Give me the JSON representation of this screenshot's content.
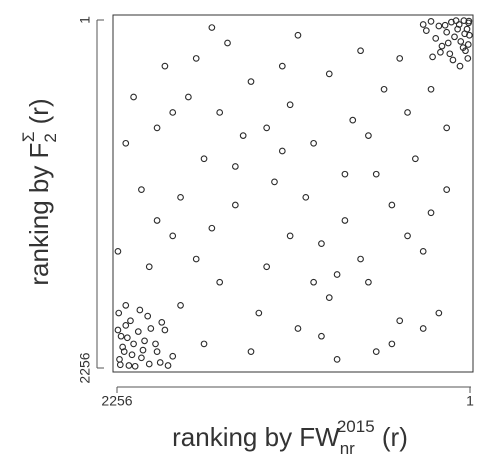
{
  "chart_data": {
    "type": "scatter",
    "x_label": {
      "text": "ranking by FW",
      "sub": "nr",
      "sup": "2015",
      "suffix": " (r)"
    },
    "y_label": {
      "text": "ranking by F",
      "sub": "2",
      "sup": "Σ",
      "suffix": " (r)"
    },
    "xlim": [
      2256,
      1
    ],
    "ylim": [
      2256,
      1
    ],
    "xticks": [
      2256,
      1
    ],
    "yticks": [
      2256,
      1
    ],
    "color": "#2b2b2b",
    "x": [
      2240,
      2210,
      2180,
      2150,
      2230,
      2100,
      2050,
      2200,
      2120,
      2000,
      2245,
      2170,
      2080,
      1980,
      2220,
      1950,
      2140,
      2060,
      2190,
      2010,
      2235,
      1900,
      2110,
      2160,
      2040,
      2250,
      1930,
      2090,
      1970,
      2200,
      10,
      40,
      80,
      5,
      120,
      60,
      150,
      30,
      200,
      100,
      15,
      250,
      70,
      180,
      130,
      20,
      90,
      220,
      45,
      160,
      8,
      280,
      110,
      35,
      190,
      300,
      65,
      140,
      240,
      12,
      1800,
      1500,
      1200,
      900,
      600,
      300,
      1700,
      1100,
      400,
      2000,
      1400,
      800,
      500,
      1600,
      1000,
      200,
      1900,
      700,
      1300,
      2100,
      350,
      1750,
      950,
      650,
      1450,
      250,
      1850,
      1150,
      550,
      1650,
      850,
      1550,
      450,
      1050,
      750,
      1350,
      2150,
      150,
      1250,
      2050,
      1950,
      600,
      1700,
      900,
      400,
      1200,
      2200,
      300,
      1600,
      1000,
      800,
      1400,
      500,
      1850,
      1100,
      700,
      1500,
      2000,
      250,
      1300,
      1750,
      950,
      150,
      1900,
      650,
      1150,
      2250,
      450,
      1650,
      850
    ],
    "y": [
      2200,
      2150,
      2240,
      2100,
      2050,
      2190,
      2230,
      1980,
      2020,
      2150,
      1900,
      1950,
      2080,
      2220,
      2120,
      2010,
      2245,
      1920,
      2060,
      2100,
      2235,
      2180,
      1880,
      2170,
      2000,
      2010,
      2240,
      2140,
      1960,
      1850,
      20,
      5,
      60,
      100,
      15,
      140,
      80,
      200,
      40,
      110,
      250,
      10,
      30,
      170,
      220,
      60,
      5,
      120,
      180,
      35,
      8,
      70,
      260,
      90,
      210,
      30,
      300,
      150,
      240,
      160,
      500,
      1200,
      300,
      1800,
      1000,
      1500,
      900,
      2000,
      600,
      700,
      400,
      1300,
      2100,
      1700,
      800,
      1900,
      1400,
      200,
      1600,
      1100,
      900,
      250,
      1450,
      1700,
      750,
      1250,
      1850,
      550,
      450,
      1350,
      2200,
      150,
      1950,
      1150,
      650,
      1900,
      500,
      700,
      1050,
      1600,
      300,
      2150,
      2100,
      350,
      1400,
      850,
      800,
      2000,
      600,
      1700,
      1000,
      2150,
      1200,
      1150,
      100,
      1550,
      950,
      1300,
      450,
      700,
      1550,
      2050,
      1100,
      600,
      750,
      1400,
      1500,
      250,
      50,
      1650
    ]
  }
}
